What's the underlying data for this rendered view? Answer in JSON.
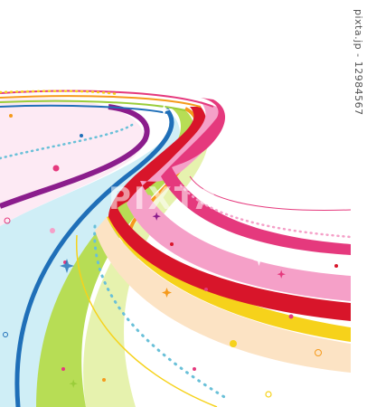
{
  "side_text": "pixta.jp - 12984567",
  "watermark": "PIXTA",
  "colors": {
    "sky": "#cfeef6",
    "blue": "#1f6fb8",
    "lime": "#9acd3a",
    "yellow": "#f6d21b",
    "peach": "#fce3c4",
    "red": "#d8152a",
    "purple": "#8b1d8c",
    "pink": "#f5a0c8",
    "magenta": "#e5397d"
  }
}
